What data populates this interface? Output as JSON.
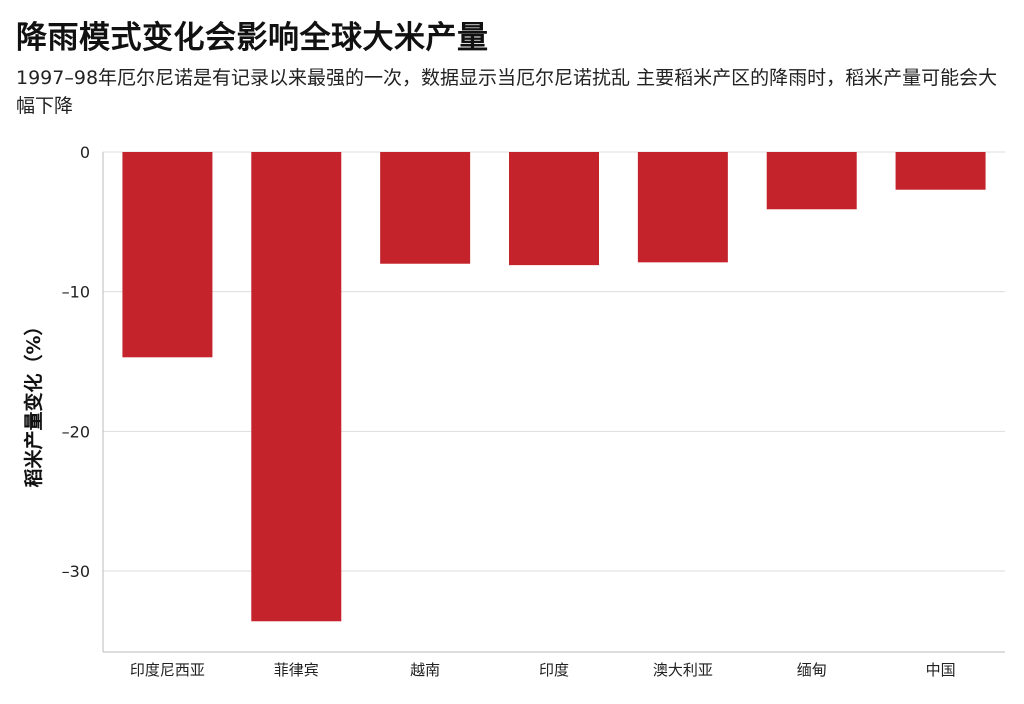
{
  "header": {
    "title": "降雨模式变化会影响全球大米产量",
    "subtitle": "1997–98年厄尔尼诺是有记录以来最强的一次，数据显示当厄尔尼诺扰乱 主要稻米产区的降雨时，稻米产量可能会大幅下降"
  },
  "colors": {
    "bar": "#c4232c",
    "grid": "#dddddd",
    "axis": "#bbbbbb"
  },
  "chart_data": {
    "type": "bar",
    "categories": [
      "印度尼西亚",
      "菲律宾",
      "越南",
      "印度",
      "澳大利亚",
      "缅甸",
      "中国"
    ],
    "values": [
      -14.7,
      -33.6,
      -8.0,
      -8.1,
      -7.9,
      -4.1,
      -2.7
    ],
    "ylabel": "稻米产量变化（%）",
    "xlabel": "",
    "ylim": [
      -35.8,
      0
    ],
    "yticks": [
      0,
      -10,
      -20,
      -30
    ],
    "ytick_labels": [
      "0",
      "–10",
      "–20",
      "–30"
    ],
    "grid": true
  }
}
